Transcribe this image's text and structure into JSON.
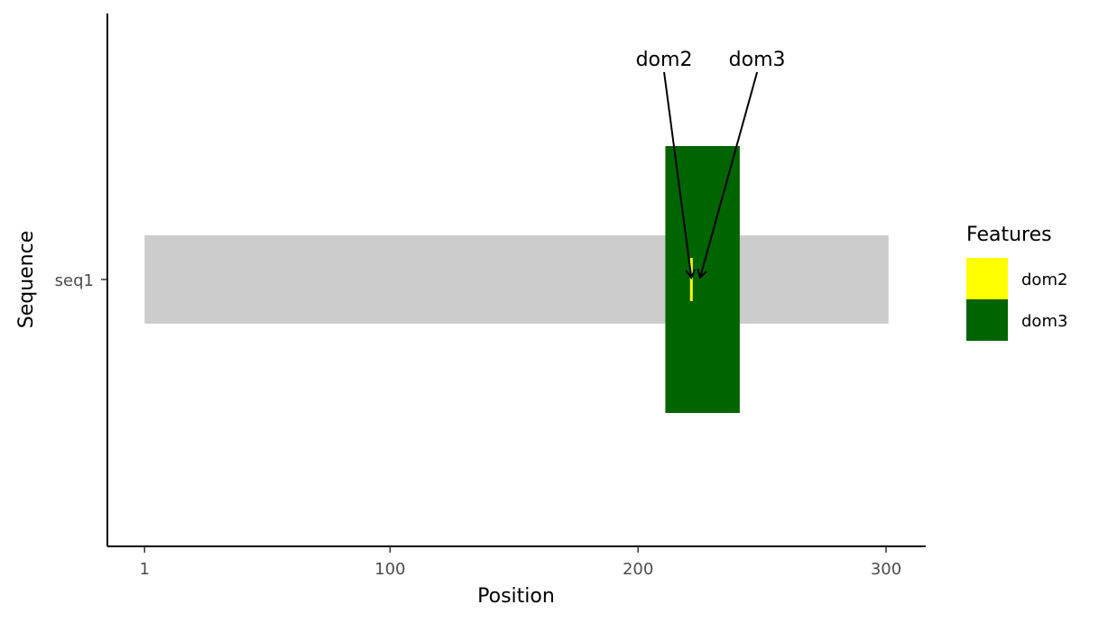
{
  "chart_data": {
    "type": "bar",
    "xlabel": "Position",
    "ylabel": "Sequence",
    "x_ticks": [
      1,
      100,
      200,
      300
    ],
    "xlim": [
      -14,
      316
    ],
    "y_categories": [
      "seq1"
    ],
    "sequence": {
      "name": "seq1",
      "start": 1,
      "end": 301,
      "color": "#cccccc"
    },
    "features": [
      {
        "name": "dom2",
        "start": 221,
        "end": 222,
        "color": "#ffff00",
        "height": "small"
      },
      {
        "name": "dom3",
        "start": 211,
        "end": 241,
        "color": "#006400",
        "height": "large"
      }
    ],
    "annotations": [
      {
        "text": "dom2",
        "x": 221.5,
        "label_x": 210.5
      },
      {
        "text": "dom3",
        "x": 225,
        "label_x": 248
      }
    ],
    "legend": {
      "title": "Features",
      "entries": [
        "dom2",
        "dom3"
      ],
      "position": "right"
    },
    "grid": false
  }
}
